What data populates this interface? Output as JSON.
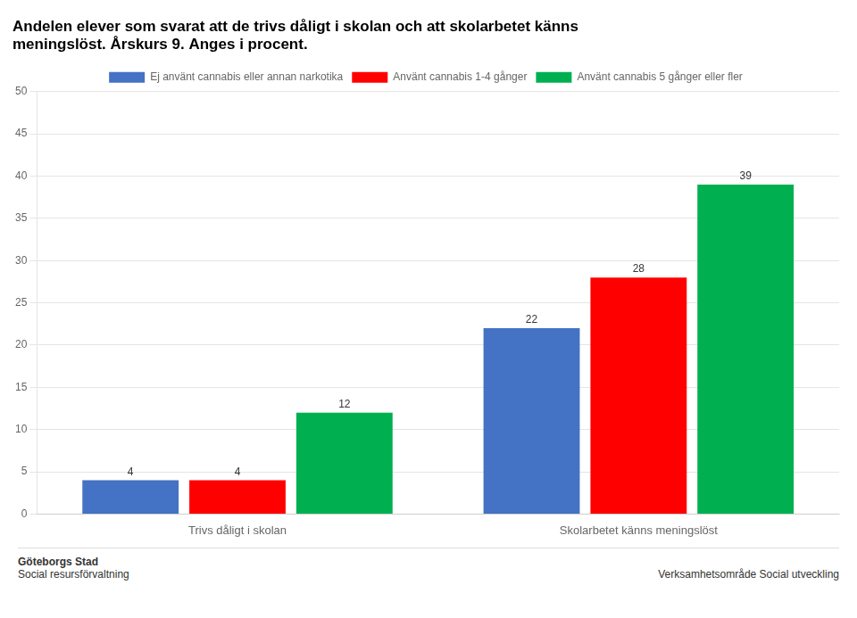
{
  "chart_data": {
    "type": "bar",
    "title": "Andelen elever som svarat att de trivs dåligt i skolan och att skolarbetet känns\nmeningslöst. Årskurs 9. Anges i procent.",
    "categories": [
      "Trivs dåligt i skolan",
      "Skolarbetet känns meningslöst"
    ],
    "series": [
      {
        "name": "Ej använt cannabis eller annan narkotika",
        "color": "#4472C4",
        "values": [
          4,
          22
        ]
      },
      {
        "name": "Använt cannabis 1-4 gånger",
        "color": "#FF0000",
        "values": [
          4,
          28
        ]
      },
      {
        "name": "Använt cannabis 5 gånger eller fler",
        "color": "#00B050",
        "values": [
          12,
          39
        ]
      }
    ],
    "ylim": [
      0,
      50
    ],
    "yticks": [
      0,
      5,
      10,
      15,
      20,
      25,
      30,
      35,
      40,
      45,
      50
    ],
    "grid": true,
    "legend": "top",
    "data_labels": true,
    "annotations": [
      "Göteborgs Stad",
      "Social resursförvaltning",
      "Verksamhetsområde Social utveckling"
    ]
  }
}
